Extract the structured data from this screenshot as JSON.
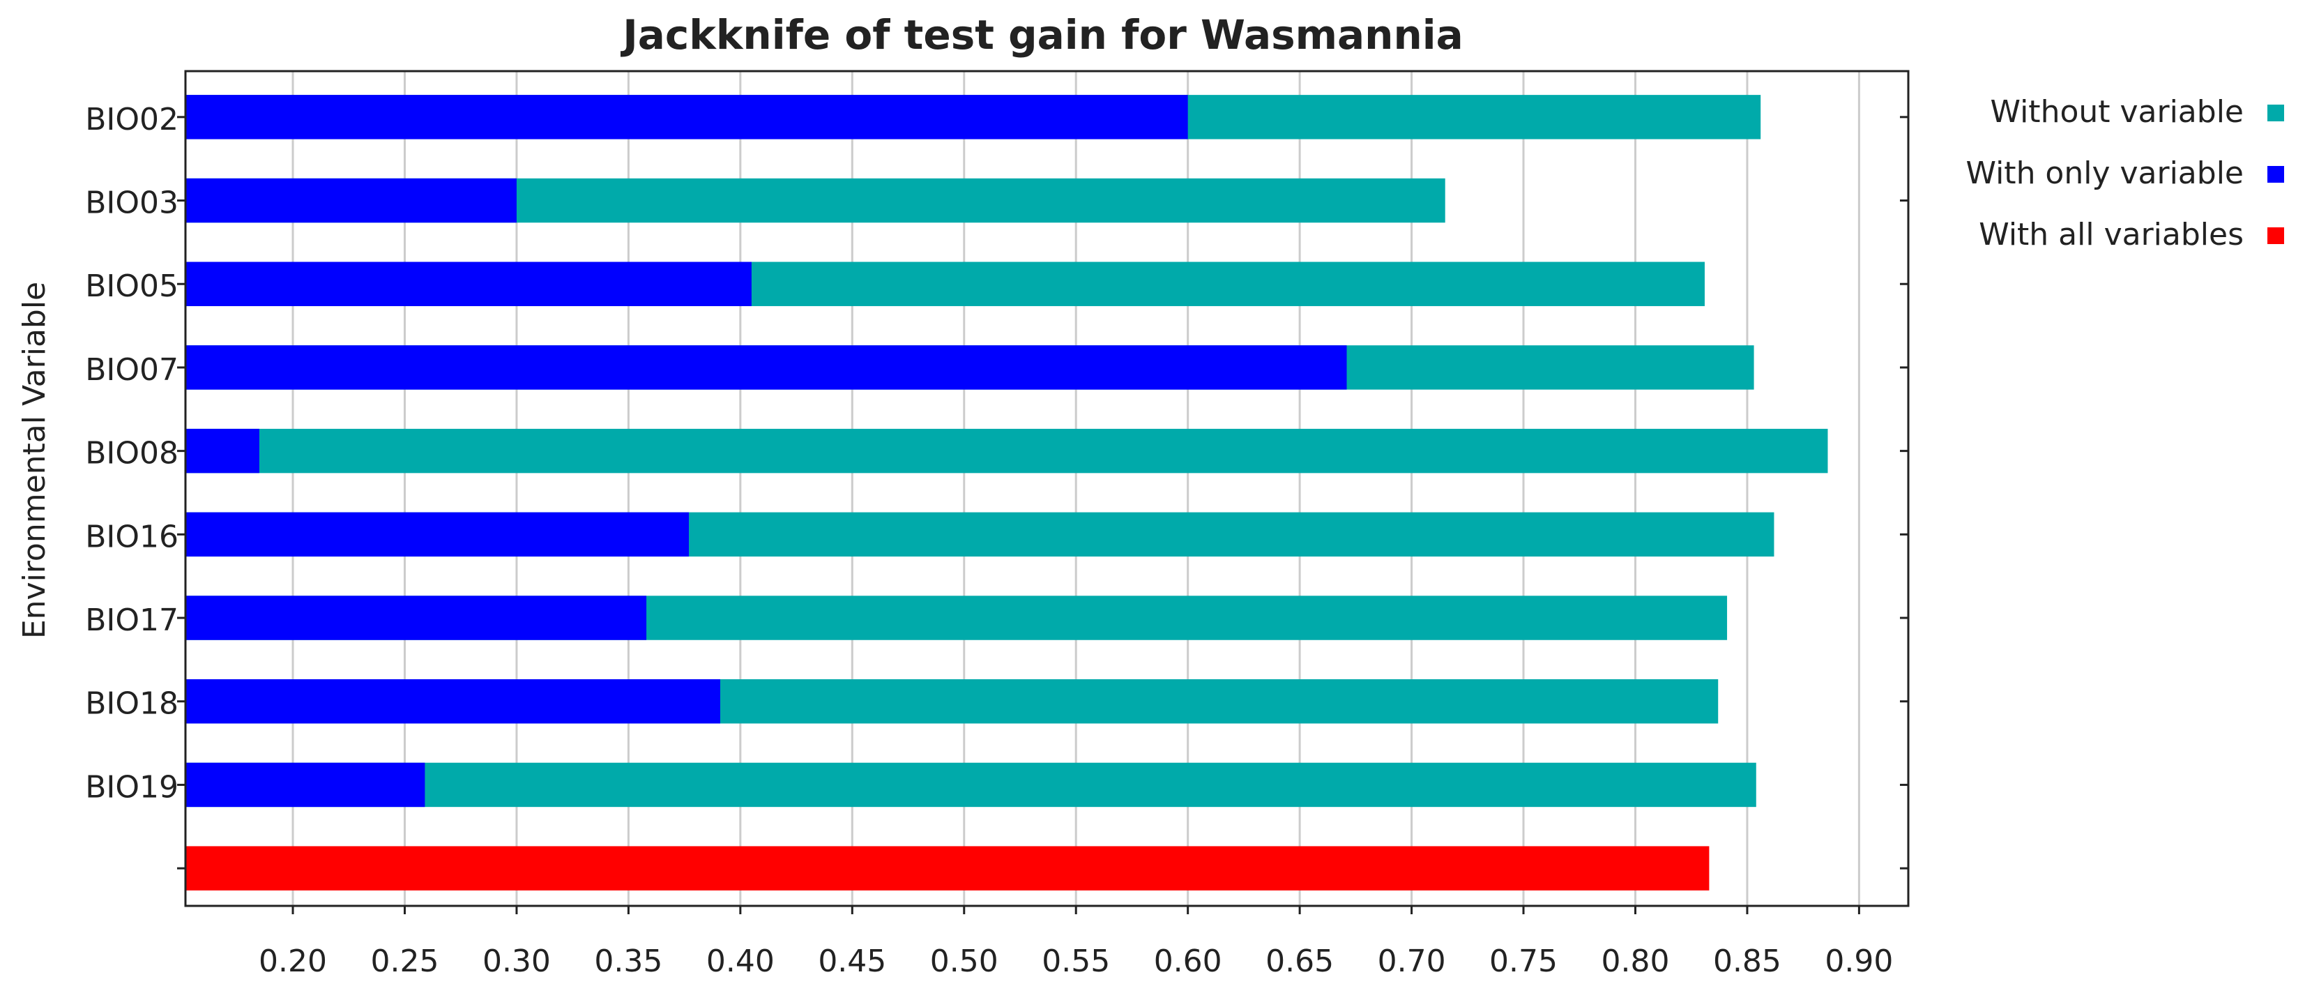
{
  "chart_data": {
    "type": "hbar_overlay",
    "title": "Jackknife of test gain for Wasmannia",
    "ylabel": "Environmental Variable",
    "categories": [
      "BIO02",
      "BIO03",
      "BIO05",
      "BIO07",
      "BIO08",
      "BIO16",
      "BIO17",
      "BIO18",
      "BIO19",
      null
    ],
    "series": [
      {
        "name": "Without variable",
        "color": "#00aaaa",
        "values": [
          0.856,
          0.715,
          0.831,
          0.853,
          0.886,
          0.862,
          0.841,
          0.837,
          0.854,
          null
        ]
      },
      {
        "name": "With only variable",
        "color": "#0000ff",
        "values": [
          0.6,
          0.3,
          0.405,
          0.671,
          0.185,
          0.377,
          0.358,
          0.391,
          0.259,
          null
        ]
      },
      {
        "name": "With all variables",
        "color": "#ff0000",
        "values": [
          null,
          null,
          null,
          null,
          null,
          null,
          null,
          null,
          null,
          0.833
        ]
      }
    ],
    "xlim": [
      0.152,
      0.922
    ],
    "xticks": [
      {
        "value": 0.2,
        "label": "0.20"
      },
      0.25,
      {
        "value": 0.3,
        "label": "0.30"
      },
      0.35,
      {
        "value": 0.4,
        "label": "0.40"
      },
      0.45,
      {
        "value": 0.5,
        "label": "0.50"
      },
      0.55,
      {
        "value": 0.6,
        "label": "0.60"
      },
      0.65,
      {
        "value": 0.7,
        "label": "0.70"
      },
      0.75,
      {
        "value": 0.8,
        "label": "0.80"
      },
      0.85,
      {
        "value": 0.9,
        "label": "0.90"
      }
    ],
    "grid": true,
    "legend": "upper right"
  }
}
